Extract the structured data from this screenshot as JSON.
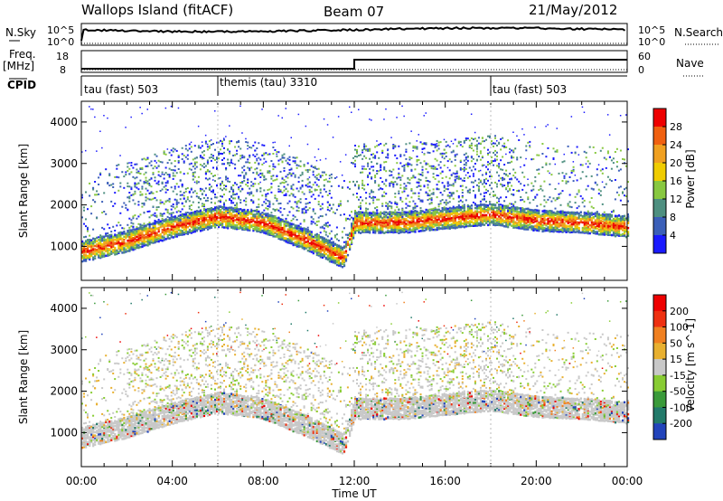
{
  "header": {
    "site": "Wallops Island (fitACF)",
    "beam": "Beam 07",
    "date": "21/May/2012"
  },
  "noise_panel": {
    "left_label": "N.Sky",
    "right_label": "N.Search",
    "left_ticks": [
      "10^5",
      "10^0"
    ],
    "right_ticks": [
      "10^5",
      "10^0"
    ]
  },
  "freq_panel": {
    "left_label_1": "Freq.",
    "left_label_2": "[MHz]",
    "right_label": "Nave",
    "left_ticks": [
      "18",
      "8"
    ],
    "right_ticks": [
      "60",
      "0"
    ]
  },
  "cpid_panel": {
    "label": "CPID",
    "segments": [
      {
        "start": 0,
        "end": 6,
        "text": "tau (fast) 503"
      },
      {
        "start": 6,
        "end": 18,
        "text": "themis (tau) 3310"
      },
      {
        "start": 18,
        "end": 24,
        "text": "tau (fast) 503"
      }
    ]
  },
  "power_panel": {
    "ylabel": "Slant Range [km]",
    "yticks": [
      "1000",
      "2000",
      "3000",
      "4000"
    ],
    "colorbar": {
      "label": "Power [dB]",
      "ticks": [
        "4",
        "8",
        "12",
        "16",
        "20",
        "24",
        "28"
      ],
      "colors": [
        "#1a1aff",
        "#3b5fb8",
        "#4e8f80",
        "#88c840",
        "#f0cc00",
        "#f0a020",
        "#f06010",
        "#ee0000"
      ]
    }
  },
  "velocity_panel": {
    "ylabel": "Slant Range [km]",
    "yticks": [
      "1000",
      "2000",
      "3000",
      "4000"
    ],
    "colorbar": {
      "label": "Velocity [m s^-1]",
      "ticks": [
        "200",
        "100",
        "50",
        "15",
        "-15",
        "-50",
        "-100",
        "-200"
      ],
      "colors": [
        "#2244bb",
        "#227a6a",
        "#3a9a3a",
        "#88cc33",
        "#c8c8c8",
        "#e8b030",
        "#f08020",
        "#ee3010",
        "#ee0000"
      ]
    }
  },
  "xaxis": {
    "label": "Time UT",
    "ticks": [
      "00:00",
      "04:00",
      "08:00",
      "12:00",
      "16:00",
      "20:00",
      "00:00"
    ]
  },
  "chart_data": {
    "type": "heatmap",
    "x_range_hours": [
      0,
      24
    ],
    "y_range_km": [
      180,
      4500
    ],
    "cpid_boundaries_hours": [
      6,
      18
    ],
    "freq_step": {
      "time_hours": 12,
      "nave_before": 10,
      "nave_after": 35
    },
    "power_main_band_km": [
      [
        0.0,
        900
      ],
      [
        2.0,
        1150
      ],
      [
        4.0,
        1500
      ],
      [
        6.0,
        1750
      ],
      [
        8.0,
        1600
      ],
      [
        10.0,
        1150
      ],
      [
        11.5,
        750
      ],
      [
        12.0,
        1600
      ],
      [
        14.0,
        1600
      ],
      [
        16.0,
        1700
      ],
      [
        18.0,
        1800
      ],
      [
        20.0,
        1650
      ],
      [
        22.0,
        1600
      ],
      [
        24.0,
        1500
      ]
    ]
  }
}
